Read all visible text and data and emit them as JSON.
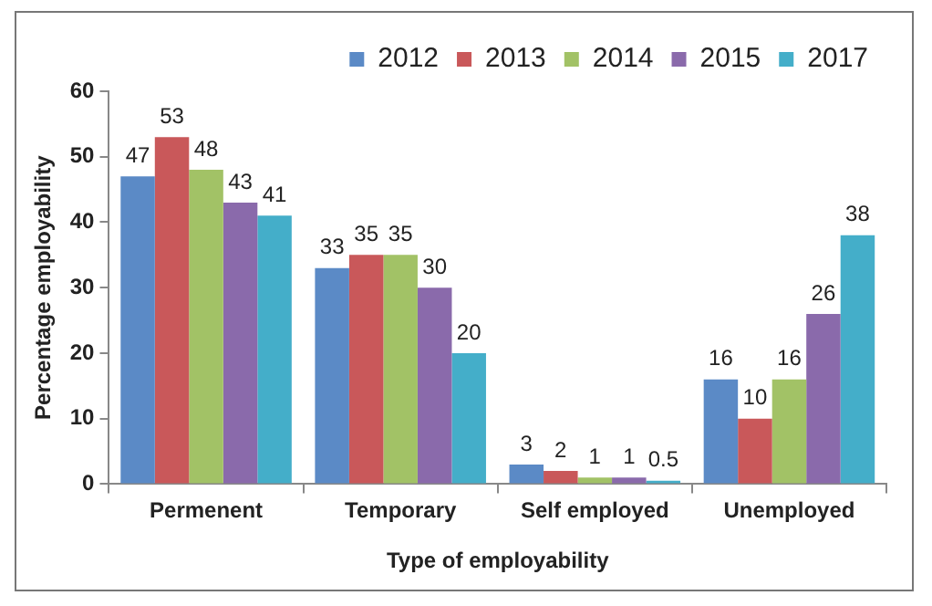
{
  "chart_data": {
    "type": "bar",
    "xlabel": "Type of employability",
    "ylabel": "Percentage employability",
    "categories": [
      "Permenent",
      "Temporary",
      "Self employed",
      "Unemployed"
    ],
    "series": [
      {
        "name": "2012",
        "color": "#5b8ac6",
        "values": [
          47,
          33,
          3,
          16
        ]
      },
      {
        "name": "2013",
        "color": "#c9585a",
        "values": [
          53,
          35,
          2,
          10
        ]
      },
      {
        "name": "2014",
        "color": "#a2c266",
        "values": [
          48,
          35,
          1,
          16
        ]
      },
      {
        "name": "2015",
        "color": "#8a6aab",
        "values": [
          43,
          30,
          1,
          26
        ]
      },
      {
        "name": "2017",
        "color": "#44aec9",
        "values": [
          41,
          20,
          0.5,
          38
        ]
      }
    ],
    "ylim": [
      0,
      60
    ],
    "yticks": [
      0,
      10,
      20,
      30,
      40,
      50,
      60
    ],
    "grid": false,
    "legend": "top right",
    "data_labels": true
  }
}
